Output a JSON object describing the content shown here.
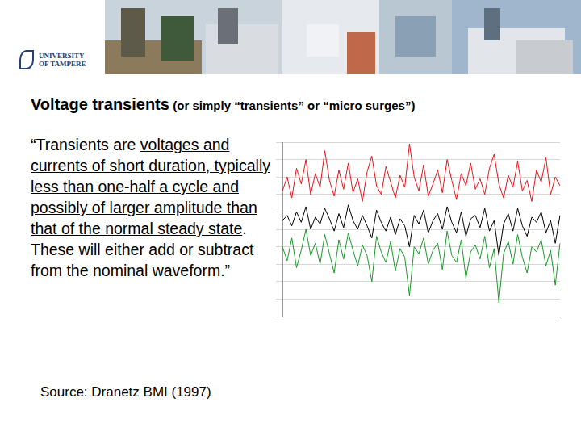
{
  "header": {
    "logo": "UNIVERSITY\nOF TAMPERE"
  },
  "title": "Voltage transients",
  "subtitle": "(or simply “transients” or “micro surges”)",
  "quote": {
    "before": "“Transients are ",
    "underlined": "voltages and currents of short duration, typically less than one-half a cycle and possibly of larger amplitude than that of the normal steady state",
    "after": ". These will either add or subtract from the nominal waveform.”"
  },
  "source": "Source: Dranetz BMI (1997)",
  "chart_data": {
    "type": "line",
    "categories": [
      null,
      null,
      null,
      null,
      null,
      null,
      null,
      null,
      null,
      null,
      null,
      null,
      null,
      null,
      null,
      null,
      null,
      null,
      null,
      null,
      null,
      null,
      null,
      null,
      null,
      null,
      null,
      null,
      null,
      null,
      null,
      null,
      null,
      null,
      null,
      null,
      null,
      null,
      null,
      null,
      null,
      null,
      null,
      null,
      null,
      null,
      null,
      null,
      null,
      null,
      null,
      null,
      null,
      null,
      null,
      null,
      null,
      null,
      null,
      null
    ],
    "series": [
      {
        "color": "#e8141c",
        "values": [
          72,
          80,
          68,
          85,
          76,
          90,
          70,
          82,
          74,
          95,
          78,
          69,
          84,
          73,
          88,
          71,
          79,
          66,
          83,
          92,
          75,
          70,
          86,
          77,
          68,
          81,
          74,
          99,
          80,
          72,
          87,
          69,
          76,
          84,
          71,
          90,
          78,
          67,
          82,
          75,
          88,
          73,
          79,
          70,
          85,
          93,
          76,
          68,
          81,
          74,
          89,
          72,
          78,
          66,
          84,
          77,
          91,
          70,
          80,
          75
        ]
      },
      {
        "color": "#1a9a2a",
        "values": [
          40,
          32,
          45,
          28,
          38,
          50,
          35,
          42,
          30,
          47,
          36,
          25,
          44,
          33,
          48,
          38,
          29,
          41,
          35,
          20,
          46,
          37,
          31,
          43,
          26,
          39,
          34,
          12,
          40,
          36,
          45,
          30,
          38,
          42,
          27,
          49,
          35,
          31,
          44,
          22,
          37,
          41,
          33,
          46,
          28,
          39,
          8,
          36,
          43,
          30,
          47,
          34,
          25,
          40,
          37,
          44,
          29,
          38,
          18,
          42
        ]
      },
      {
        "color": "#000000",
        "values": [
          55,
          58,
          52,
          60,
          54,
          63,
          50,
          57,
          53,
          62,
          56,
          49,
          59,
          51,
          64,
          55,
          50,
          58,
          52,
          45,
          61,
          54,
          49,
          57,
          47,
          56,
          52,
          40,
          58,
          53,
          61,
          48,
          55,
          59,
          50,
          63,
          54,
          48,
          60,
          46,
          56,
          58,
          51,
          62,
          49,
          55,
          35,
          53,
          59,
          49,
          62,
          52,
          46,
          57,
          54,
          60,
          48,
          55,
          42,
          58
        ]
      }
    ],
    "ylim": [
      0,
      100
    ],
    "yticks": [
      0,
      10,
      20,
      30,
      40,
      50,
      60,
      70,
      80,
      90,
      100
    ],
    "grid": true,
    "tick_labels": false
  }
}
